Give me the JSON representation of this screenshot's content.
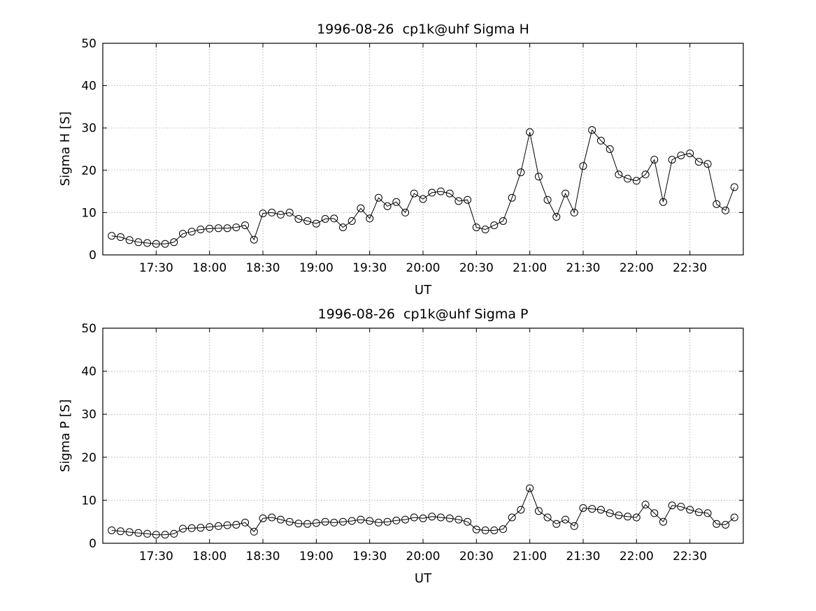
{
  "figure": {
    "background": "#ffffff"
  },
  "chart_data": [
    {
      "id": "sigma-h",
      "type": "line",
      "title": "1996-08-26  cp1k@uhf Sigma H",
      "xlabel": "UT",
      "ylabel": "Sigma H [S]",
      "ylim": [
        0,
        50
      ],
      "yticks": [
        0,
        10,
        20,
        30,
        40,
        50
      ],
      "xlim": [
        "17:00",
        "23:00"
      ],
      "xticks": [
        "17:30",
        "18:00",
        "18:30",
        "19:00",
        "19:30",
        "20:00",
        "20:30",
        "21:00",
        "21:30",
        "22:00",
        "22:30"
      ],
      "x_start": "17:05",
      "x_step_minutes": 5,
      "grid": true,
      "legend": "none",
      "marker": "open-circle",
      "line_color": "#000000",
      "grid_color": "#b5b5b5",
      "values": [
        4.5,
        4.2,
        3.5,
        3.0,
        2.8,
        2.6,
        2.6,
        3.0,
        5.0,
        5.5,
        6.0,
        6.2,
        6.3,
        6.3,
        6.5,
        7.0,
        3.6,
        9.8,
        10.0,
        9.5,
        10.0,
        8.5,
        8.0,
        7.4,
        8.5,
        8.6,
        6.5,
        8.0,
        11.0,
        8.6,
        13.5,
        11.5,
        12.5,
        10.0,
        14.5,
        13.2,
        14.7,
        15.0,
        14.5,
        12.7,
        13.0,
        6.5,
        6.0,
        7.0,
        8.0,
        13.5,
        19.5,
        29.0,
        18.5,
        13.0,
        9.0,
        14.5,
        10.0,
        21.0,
        29.5,
        27.0,
        25.0,
        19.0,
        18.0,
        17.5,
        19.0,
        22.5,
        12.5,
        22.5,
        23.5,
        24.0,
        22.0,
        21.5,
        12.0,
        10.5,
        16.0
      ]
    },
    {
      "id": "sigma-p",
      "type": "line",
      "title": "1996-08-26  cp1k@uhf Sigma P",
      "xlabel": "UT",
      "ylabel": "Sigma P [S]",
      "ylim": [
        0,
        50
      ],
      "yticks": [
        0,
        10,
        20,
        30,
        40,
        50
      ],
      "xlim": [
        "17:00",
        "23:00"
      ],
      "xticks": [
        "17:30",
        "18:00",
        "18:30",
        "19:00",
        "19:30",
        "20:00",
        "20:30",
        "21:00",
        "21:30",
        "22:00",
        "22:30"
      ],
      "x_start": "17:05",
      "x_step_minutes": 5,
      "grid": true,
      "legend": "none",
      "marker": "open-circle",
      "line_color": "#000000",
      "grid_color": "#b5b5b5",
      "values": [
        3.0,
        2.8,
        2.6,
        2.4,
        2.2,
        2.0,
        2.0,
        2.2,
        3.4,
        3.5,
        3.6,
        3.8,
        4.0,
        4.2,
        4.3,
        4.8,
        2.7,
        5.8,
        6.0,
        5.5,
        5.0,
        4.6,
        4.5,
        4.7,
        5.0,
        4.8,
        5.0,
        5.2,
        5.5,
        5.2,
        4.8,
        5.0,
        5.3,
        5.5,
        6.0,
        5.8,
        6.2,
        6.0,
        5.8,
        5.5,
        5.0,
        3.2,
        3.0,
        3.0,
        3.3,
        6.0,
        7.8,
        12.8,
        7.5,
        6.0,
        4.5,
        5.5,
        4.0,
        8.2,
        8.0,
        7.8,
        7.0,
        6.5,
        6.2,
        6.0,
        9.0,
        7.0,
        5.0,
        8.8,
        8.5,
        7.8,
        7.2,
        7.0,
        4.5,
        4.3,
        6.0
      ]
    }
  ]
}
